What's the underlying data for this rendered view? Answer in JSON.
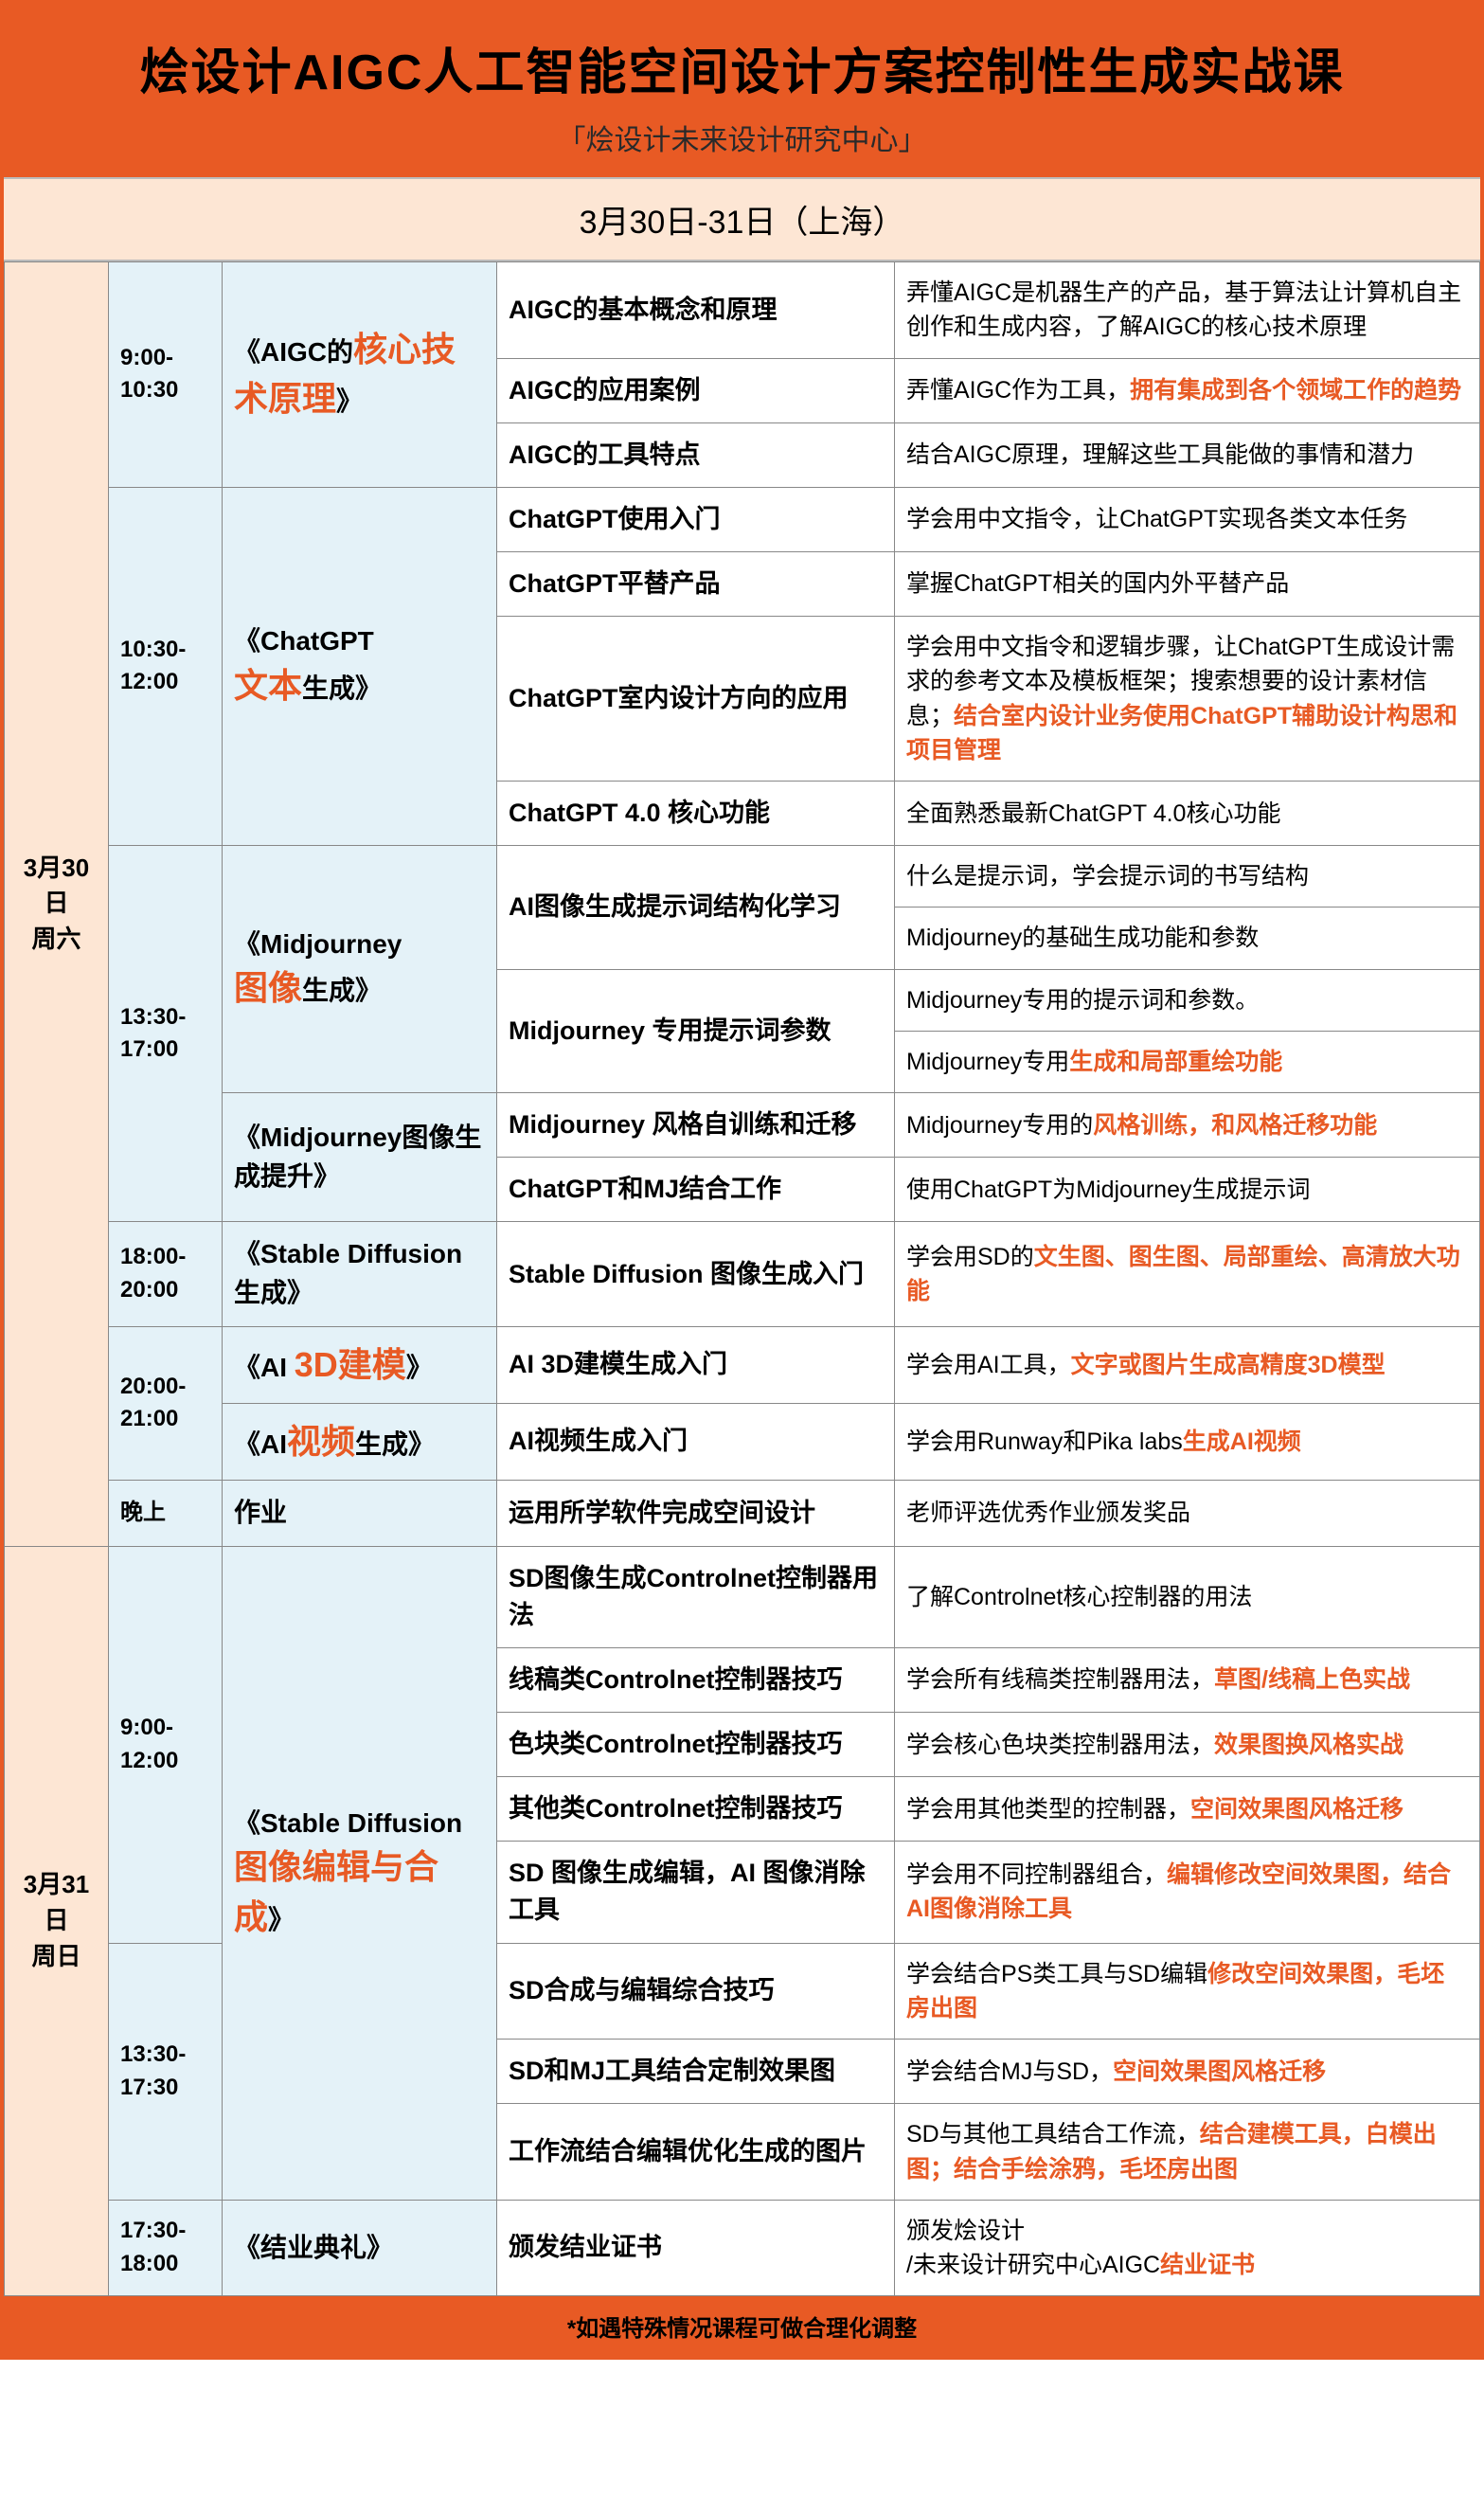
{
  "colors": {
    "accent": "#e85a24",
    "header_bg": "#e85a24",
    "date_bg": "#fde6d4",
    "day_bg": "#fde6d4",
    "time_bg": "#e4f2f8",
    "topic_bg": "#e4f2f8",
    "border": "#888888",
    "text": "#000000",
    "highlight": "#e85a24"
  },
  "header": {
    "title": "烩设计AIGC人工智能空间设计方案控制性生成实战课",
    "subtitle": "「烩设计未来设计研究中心」",
    "date_location": "3月30日-31日（上海）"
  },
  "day1": {
    "label_line1": "3月30日",
    "label_line2": "周六",
    "s1": {
      "time": "9:00-10:30",
      "topic_pre": "《AIGC的",
      "topic_hl": "核心技术原理",
      "topic_post": "》",
      "r1_sub": "AIGC的基本概念和原理",
      "r1_desc": "弄懂AIGC是机器生产的产品，基于算法让计算机自主创作和生成内容，了解AIGC的核心技术原理",
      "r2_sub": "AIGC的应用案例",
      "r2_desc_a": "弄懂AIGC作为工具，",
      "r2_desc_hl": "拥有集成到各个领域工作的趋势",
      "r3_sub": "AIGC的工具特点",
      "r3_desc": "结合AIGC原理，理解这些工具能做的事情和潜力"
    },
    "s2": {
      "time": "10:30-12:00",
      "topic_pre": "《ChatGPT",
      "topic_hl": "文本",
      "topic_post": "生成》",
      "r1_sub": "ChatGPT使用入门",
      "r1_desc": "学会用中文指令，让ChatGPT实现各类文本任务",
      "r2_sub": "ChatGPT平替产品",
      "r2_desc": "掌握ChatGPT相关的国内外平替产品",
      "r3_sub": "ChatGPT室内设计方向的应用",
      "r3_desc_a": "学会用中文指令和逻辑步骤，让ChatGPT生成设计需求的参考文本及模板框架；搜索想要的设计素材信息；",
      "r3_desc_hl": "结合室内设计业务使用ChatGPT辅助设计构思和项目管理",
      "r4_sub": "ChatGPT 4.0 核心功能",
      "r4_desc": "全面熟悉最新ChatGPT 4.0核心功能"
    },
    "s3": {
      "time": "13:30-17:00",
      "topicA_pre": "《Midjourney",
      "topicA_hl": "图像",
      "topicA_post": "生成》",
      "topicB": "《Midjourney图像生成提升》",
      "r1_sub": "AI图像生成提示词结构化学习",
      "r1_desc": "什么是提示词，学会提示词的书写结构",
      "r2_desc": "Midjourney的基础生成功能和参数",
      "r3_sub": "Midjourney 专用提示词参数",
      "r3_desc": "Midjourney专用的提示词和参数。",
      "r4_desc_a": "Midjourney专用",
      "r4_desc_hl": "生成和局部重绘功能",
      "r5_sub": "Midjourney 风格自训练和迁移",
      "r5_desc_a": "Midjourney专用的",
      "r5_desc_hl": "风格训练，和风格迁移功能",
      "r6_sub": "ChatGPT和MJ结合工作",
      "r6_desc": "使用ChatGPT为Midjourney生成提示词"
    },
    "s4": {
      "time": "18:00-20:00",
      "topic": "《Stable Diffusion生成》",
      "sub": "Stable Diffusion 图像生成入门",
      "desc_a": "学会用SD的",
      "desc_hl": "文生图、图生图、局部重绘、高清放大功能"
    },
    "s5": {
      "time": "20:00-21:00",
      "topicA_pre": "《AI ",
      "topicA_hl": "3D建模",
      "topicA_post": "》",
      "topicB_pre": "《AI",
      "topicB_hl": "视频",
      "topicB_post": "生成》",
      "r1_sub": "AI 3D建模生成入门",
      "r1_desc_a": "学会用AI工具，",
      "r1_desc_hl": "文字或图片生成高精度3D模型",
      "r2_sub": "AI视频生成入门",
      "r2_desc_a": "学会用Runway和Pika labs",
      "r2_desc_hl": "生成AI视频"
    },
    "evening": {
      "time": "晚上",
      "topic": "作业",
      "sub": "运用所学软件完成空间设计",
      "desc": "老师评选优秀作业颁发奖品"
    }
  },
  "day2": {
    "label_line1": "3月31日",
    "label_line2": "周日",
    "s1": {
      "time1": "9:00-12:00",
      "time2": "13:30-17:30",
      "topic_pre": "《Stable Diffusion",
      "topic_hl": "图像编辑与合成",
      "topic_post": "》",
      "r1_sub": "SD图像生成Controlnet控制器用法",
      "r1_desc": "了解Controlnet核心控制器的用法",
      "r2_sub": "线稿类Controlnet控制器技巧",
      "r2_desc_a": "学会所有线稿类控制器用法，",
      "r2_desc_hl": "草图/线稿上色实战",
      "r3_sub": "色块类Controlnet控制器技巧",
      "r3_desc_a": "学会核心色块类控制器用法，",
      "r3_desc_hl": "效果图换风格实战",
      "r4_sub": "其他类Controlnet控制器技巧",
      "r4_desc_a": "学会用其他类型的控制器，",
      "r4_desc_hl": "空间效果图风格迁移",
      "r5_sub": "SD 图像生成编辑，AI 图像消除工具",
      "r5_desc_a": "学会用不同控制器组合，",
      "r5_desc_hl": "编辑修改空间效果图，结合AI图像消除工具",
      "r6_sub": "SD合成与编辑综合技巧",
      "r6_desc_a": "学会结合PS类工具与SD编辑",
      "r6_desc_hl": "修改空间效果图，毛坯房出图",
      "r7_sub": "SD和MJ工具结合定制效果图",
      "r7_desc_a": "学会结合MJ与SD，",
      "r7_desc_hl": "空间效果图风格迁移",
      "r8_sub": "工作流结合编辑优化生成的图片",
      "r8_desc_a": "SD与其他工具结合工作流，",
      "r8_desc_hl": "结合建模工具，白模出图；结合手绘涂鸦，毛坯房出图"
    },
    "s2": {
      "time": "17:30-18:00",
      "topic": "《结业典礼》",
      "sub": "颁发结业证书",
      "desc_a": "颁发烩设计",
      "desc_b": "/未来设计研究中心AIGC",
      "desc_hl": "结业证书"
    }
  },
  "footer": "*如遇特殊情况课程可做合理化调整"
}
